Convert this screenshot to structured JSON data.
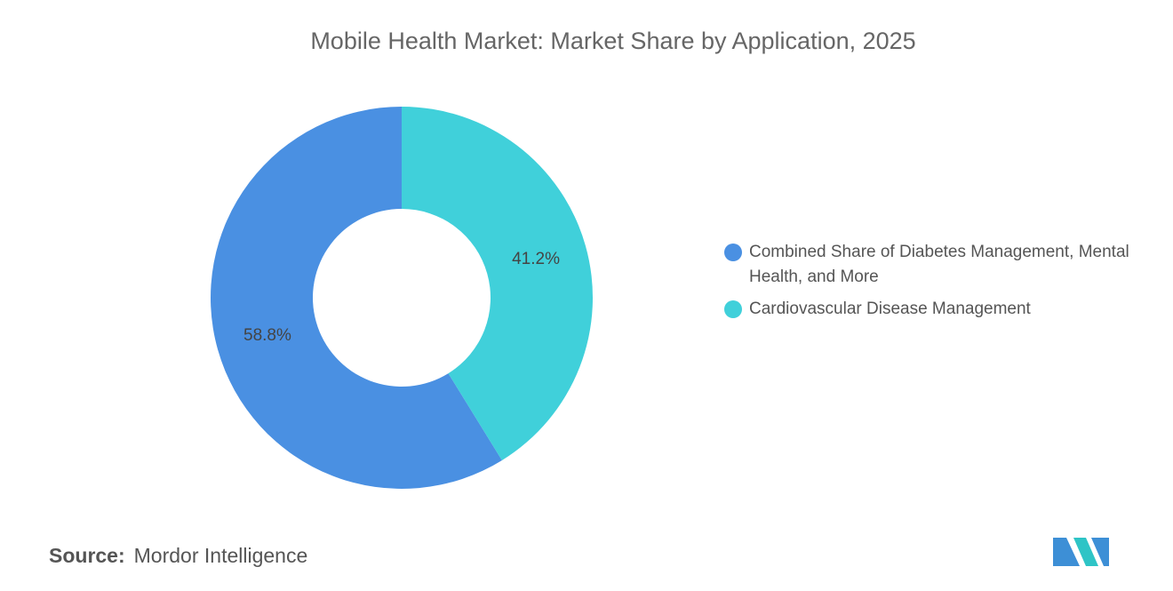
{
  "chart_data": {
    "type": "donut",
    "title": "Mobile Health Market: Market Share by Application, 2025",
    "categories": [
      "Combined Share of Diabetes Management, Mental Health, and More",
      "Cardiovascular Disease Management"
    ],
    "values": [
      58.8,
      41.2
    ],
    "value_labels": [
      "58.8%",
      "41.2%"
    ],
    "colors": [
      "#4a90e2",
      "#40d0da"
    ],
    "legend": "right"
  },
  "footer": {
    "source_label": "Source:",
    "source": "Mordor Intelligence"
  }
}
